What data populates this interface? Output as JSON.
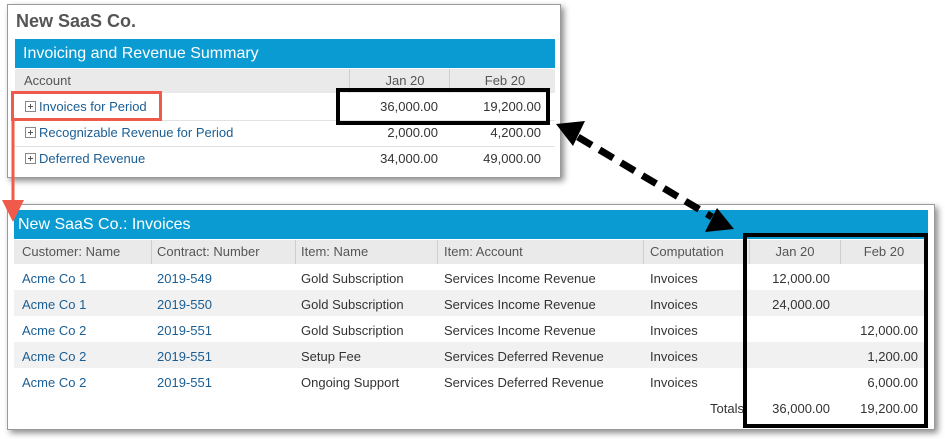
{
  "summary": {
    "company": "New SaaS Co.",
    "title": "Invoicing and Revenue Summary",
    "columns": {
      "account": "Account",
      "jan": "Jan 20",
      "feb": "Feb 20"
    },
    "rows": [
      {
        "account": "Invoices for Period",
        "jan": "36,000.00",
        "feb": "19,200.00"
      },
      {
        "account": "Recognizable Revenue for Period",
        "jan": "2,000.00",
        "feb": "4,200.00"
      },
      {
        "account": "Deferred Revenue",
        "jan": "34,000.00",
        "feb": "49,000.00"
      }
    ]
  },
  "invoices": {
    "title": "New SaaS Co.: Invoices",
    "columns": {
      "customer": "Customer: Name",
      "contract": "Contract: Number",
      "item": "Item: Name",
      "account": "Item: Account",
      "computation": "Computation",
      "jan": "Jan 20",
      "feb": "Feb 20"
    },
    "rows": [
      {
        "customer": "Acme Co 1",
        "contract": "2019-549",
        "item": "Gold Subscription",
        "account": "Services Income Revenue",
        "computation": "Invoices",
        "jan": "12,000.00",
        "feb": ""
      },
      {
        "customer": "Acme Co 1",
        "contract": "2019-550",
        "item": "Gold Subscription",
        "account": "Services Income Revenue",
        "computation": "Invoices",
        "jan": "24,000.00",
        "feb": ""
      },
      {
        "customer": "Acme Co 2",
        "contract": "2019-551",
        "item": "Gold Subscription",
        "account": "Services Income Revenue",
        "computation": "Invoices",
        "jan": "",
        "feb": "12,000.00"
      },
      {
        "customer": "Acme Co 2",
        "contract": "2019-551",
        "item": "Setup Fee",
        "account": "Services Deferred Revenue",
        "computation": "Invoices",
        "jan": "",
        "feb": "1,200.00"
      },
      {
        "customer": "Acme Co 2",
        "contract": "2019-551",
        "item": "Ongoing Support",
        "account": "Services Deferred Revenue",
        "computation": "Invoices",
        "jan": "",
        "feb": "6,000.00"
      }
    ],
    "totals": {
      "label": "Totals",
      "jan": "36,000.00",
      "feb": "19,200.00"
    }
  },
  "colors": {
    "header_bar": "#0b9bd3",
    "link": "#1b5e93",
    "highlight_red": "#f05a4a",
    "highlight_black": "#000000"
  }
}
